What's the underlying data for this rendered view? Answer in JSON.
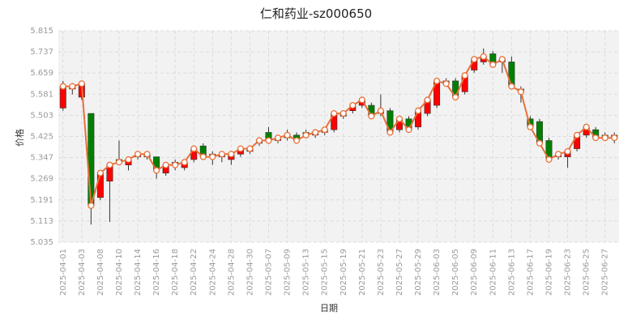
{
  "chart_data": {
    "type": "candlestick",
    "title": "仁和药业-sz000650",
    "xlabel": "日期",
    "ylabel": "价格",
    "ylim": [
      5.035,
      5.815
    ],
    "y_ticks": [
      "5.035",
      "5.113",
      "5.191",
      "5.269",
      "5.347",
      "5.425",
      "5.503",
      "5.581",
      "5.659",
      "5.737",
      "5.815"
    ],
    "x_tick_labels": [
      "2025-04-01",
      "2025-04-03",
      "2025-04-08",
      "2025-04-10",
      "2025-04-14",
      "2025-04-16",
      "2025-04-18",
      "2025-04-22",
      "2025-04-24",
      "2025-04-28",
      "2025-04-30",
      "2025-05-07",
      "2025-05-09",
      "2025-05-13",
      "2025-05-15",
      "2025-05-19",
      "2025-05-21",
      "2025-05-23",
      "2025-05-27",
      "2025-05-29",
      "2025-06-03",
      "2025-06-05",
      "2025-06-09",
      "2025-06-11",
      "2025-06-13",
      "2025-06-17",
      "2025-06-19",
      "2025-06-23",
      "2025-06-25",
      "2025-06-27"
    ],
    "grid": true,
    "colors": {
      "up": "#ff0000",
      "down": "#008000",
      "close_line": "#e8703a",
      "marker": "#e8703a"
    },
    "candles": [
      {
        "open": 5.53,
        "close": 5.61,
        "high": 5.63,
        "low": 5.52
      },
      {
        "open": 5.6,
        "close": 5.61,
        "high": 5.62,
        "low": 5.58
      },
      {
        "open": 5.57,
        "close": 5.62,
        "high": 5.63,
        "low": 5.56
      },
      {
        "open": 5.51,
        "close": 5.17,
        "high": 5.51,
        "low": 5.1
      },
      {
        "open": 5.2,
        "close": 5.29,
        "high": 5.3,
        "low": 5.19
      },
      {
        "open": 5.26,
        "close": 5.32,
        "high": 5.33,
        "low": 5.11
      },
      {
        "open": 5.34,
        "close": 5.33,
        "high": 5.41,
        "low": 5.32
      },
      {
        "open": 5.32,
        "close": 5.34,
        "high": 5.35,
        "low": 5.3
      },
      {
        "open": 5.35,
        "close": 5.36,
        "high": 5.37,
        "low": 5.34
      },
      {
        "open": 5.35,
        "close": 5.36,
        "high": 5.37,
        "low": 5.34
      },
      {
        "open": 5.35,
        "close": 5.3,
        "high": 5.35,
        "low": 5.27
      },
      {
        "open": 5.29,
        "close": 5.32,
        "high": 5.33,
        "low": 5.28
      },
      {
        "open": 5.33,
        "close": 5.32,
        "high": 5.34,
        "low": 5.3
      },
      {
        "open": 5.31,
        "close": 5.33,
        "high": 5.34,
        "low": 5.3
      },
      {
        "open": 5.34,
        "close": 5.38,
        "high": 5.39,
        "low": 5.33
      },
      {
        "open": 5.39,
        "close": 5.35,
        "high": 5.4,
        "low": 5.34
      },
      {
        "open": 5.36,
        "close": 5.35,
        "high": 5.37,
        "low": 5.32
      },
      {
        "open": 5.35,
        "close": 5.36,
        "high": 5.37,
        "low": 5.33
      },
      {
        "open": 5.34,
        "close": 5.36,
        "high": 5.37,
        "low": 5.32
      },
      {
        "open": 5.36,
        "close": 5.38,
        "high": 5.39,
        "low": 5.35
      },
      {
        "open": 5.37,
        "close": 5.38,
        "high": 5.39,
        "low": 5.36
      },
      {
        "open": 5.4,
        "close": 5.41,
        "high": 5.42,
        "low": 5.39
      },
      {
        "open": 5.44,
        "close": 5.41,
        "high": 5.46,
        "low": 5.4
      },
      {
        "open": 5.41,
        "close": 5.42,
        "high": 5.43,
        "low": 5.4
      },
      {
        "open": 5.42,
        "close": 5.43,
        "high": 5.45,
        "low": 5.41
      },
      {
        "open": 5.43,
        "close": 5.41,
        "high": 5.44,
        "low": 5.4
      },
      {
        "open": 5.44,
        "close": 5.43,
        "high": 5.45,
        "low": 5.42
      },
      {
        "open": 5.43,
        "close": 5.44,
        "high": 5.45,
        "low": 5.42
      },
      {
        "open": 5.44,
        "close": 5.45,
        "high": 5.46,
        "low": 5.43
      },
      {
        "open": 5.45,
        "close": 5.51,
        "high": 5.52,
        "low": 5.44
      },
      {
        "open": 5.5,
        "close": 5.51,
        "high": 5.52,
        "low": 5.49
      },
      {
        "open": 5.52,
        "close": 5.54,
        "high": 5.55,
        "low": 5.51
      },
      {
        "open": 5.54,
        "close": 5.56,
        "high": 5.57,
        "low": 5.53
      },
      {
        "open": 5.54,
        "close": 5.5,
        "high": 5.55,
        "low": 5.49
      },
      {
        "open": 5.51,
        "close": 5.52,
        "high": 5.58,
        "low": 5.5
      },
      {
        "open": 5.52,
        "close": 5.44,
        "high": 5.53,
        "low": 5.43
      },
      {
        "open": 5.45,
        "close": 5.49,
        "high": 5.5,
        "low": 5.44
      },
      {
        "open": 5.49,
        "close": 5.45,
        "high": 5.5,
        "low": 5.44
      },
      {
        "open": 5.46,
        "close": 5.52,
        "high": 5.53,
        "low": 5.45
      },
      {
        "open": 5.51,
        "close": 5.56,
        "high": 5.57,
        "low": 5.5
      },
      {
        "open": 5.54,
        "close": 5.63,
        "high": 5.64,
        "low": 5.53
      },
      {
        "open": 5.63,
        "close": 5.62,
        "high": 5.64,
        "low": 5.61
      },
      {
        "open": 5.63,
        "close": 5.57,
        "high": 5.64,
        "low": 5.56
      },
      {
        "open": 5.59,
        "close": 5.65,
        "high": 5.66,
        "low": 5.58
      },
      {
        "open": 5.67,
        "close": 5.71,
        "high": 5.72,
        "low": 5.66
      },
      {
        "open": 5.7,
        "close": 5.72,
        "high": 5.75,
        "low": 5.69
      },
      {
        "open": 5.73,
        "close": 5.69,
        "high": 5.74,
        "low": 5.68
      },
      {
        "open": 5.7,
        "close": 5.71,
        "high": 5.72,
        "low": 5.66
      },
      {
        "open": 5.7,
        "close": 5.61,
        "high": 5.72,
        "low": 5.6
      },
      {
        "open": 5.6,
        "close": 5.59,
        "high": 5.61,
        "low": 5.55
      },
      {
        "open": 5.49,
        "close": 5.46,
        "high": 5.5,
        "low": 5.45
      },
      {
        "open": 5.48,
        "close": 5.4,
        "high": 5.49,
        "low": 5.39
      },
      {
        "open": 5.41,
        "close": 5.34,
        "high": 5.42,
        "low": 5.33
      },
      {
        "open": 5.35,
        "close": 5.36,
        "high": 5.37,
        "low": 5.34
      },
      {
        "open": 5.35,
        "close": 5.37,
        "high": 5.38,
        "low": 5.31
      },
      {
        "open": 5.38,
        "close": 5.43,
        "high": 5.44,
        "low": 5.37
      },
      {
        "open": 5.43,
        "close": 5.46,
        "high": 5.47,
        "low": 5.42
      },
      {
        "open": 5.45,
        "close": 5.42,
        "high": 5.46,
        "low": 5.41
      },
      {
        "open": 5.43,
        "close": 5.42,
        "high": 5.44,
        "low": 5.41
      },
      {
        "open": 5.43,
        "close": 5.42,
        "high": 5.44,
        "low": 5.4
      }
    ]
  }
}
